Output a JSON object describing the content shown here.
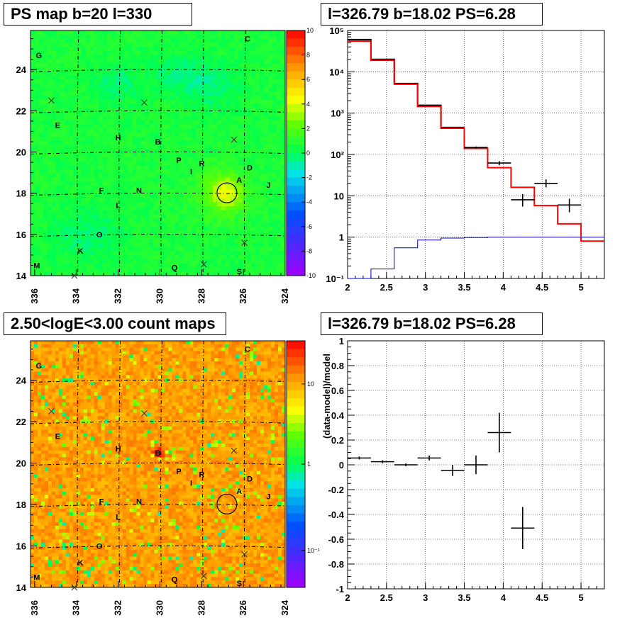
{
  "panels": {
    "ps_map": {
      "title": "PS map b=20 l=330"
    },
    "count_map": {
      "title": "2.50<logE<3.00 count maps"
    },
    "spectrum": {
      "title": "l=326.79 b=18.02 PS=6.28"
    },
    "residual": {
      "title": "l=326.79 b=18.02 PS=6.28"
    }
  },
  "chart_data": [
    {
      "type": "heatmap",
      "name": "ps_map",
      "title": "PS map b=20 l=330",
      "xlim": [
        336.2,
        324
      ],
      "ylim": [
        14,
        25.9
      ],
      "x_ticks": [
        "336",
        "334",
        "332",
        "330",
        "328",
        "326",
        "324"
      ],
      "y_ticks": [
        "14",
        "16",
        "18",
        "20",
        "22",
        "24"
      ],
      "colorbar": {
        "min": -10,
        "max": 10,
        "ticks": [
          "-10",
          "-8",
          "-6",
          "-4",
          "-2",
          "0",
          "2",
          "4",
          "6",
          "8",
          "10"
        ]
      },
      "grid": true
    },
    {
      "type": "heatmap",
      "name": "count_map",
      "title": "2.50<logE<3.00 count maps",
      "xlim": [
        336.2,
        324
      ],
      "ylim": [
        14,
        25.9
      ],
      "x_ticks": [
        "336",
        "334",
        "332",
        "330",
        "328",
        "326",
        "324"
      ],
      "y_ticks": [
        "14",
        "16",
        "18",
        "20",
        "22",
        "24"
      ],
      "colorbar": {
        "scale": "log",
        "ticks": [
          "10",
          "1",
          "10⁻¹"
        ]
      },
      "grid": true
    },
    {
      "type": "line",
      "name": "spectrum",
      "title": "l=326.79 b=18.02 PS=6.28",
      "xlim": [
        2,
        5.3
      ],
      "ylim": [
        0.1,
        100000
      ],
      "yscale": "log",
      "x_ticks": [
        "2",
        "2.5",
        "3",
        "3.5",
        "4",
        "4.5",
        "5"
      ],
      "y_ticks": [
        "10⁻¹",
        "1",
        "10",
        "10²",
        "10³",
        "10⁴",
        "10⁵"
      ],
      "grid": true,
      "series": [
        {
          "kind": "step",
          "color": "#000000",
          "edges": [
            2,
            2.3,
            2.6,
            2.9,
            3.2,
            3.5
          ],
          "values": [
            60000,
            20000,
            5200,
            1550,
            450
          ]
        },
        {
          "kind": "step",
          "color": "#ff0000",
          "edges": [
            2,
            2.3,
            2.6,
            2.9,
            3.2,
            3.5,
            3.8,
            4.1,
            4.4,
            4.7,
            5.0,
            5.3
          ],
          "values": [
            55000,
            19000,
            5000,
            1450,
            430,
            140,
            48,
            16,
            5.8,
            2.1,
            0.8
          ]
        },
        {
          "kind": "step",
          "color": "#0000cc",
          "edges": [
            2,
            2.3,
            2.6,
            2.9,
            3.2,
            3.5,
            3.8,
            4.1,
            4.4,
            4.7,
            5.0,
            5.3
          ],
          "values": [
            0.1,
            0.17,
            0.55,
            0.85,
            0.95,
            0.98,
            1,
            1,
            1,
            1,
            1
          ]
        },
        {
          "kind": "errorbar",
          "color": "#000000",
          "points": [
            {
              "x": 3.65,
              "xerr": 0.15,
              "y": 148,
              "ylo": 140,
              "yhi": 156
            },
            {
              "x": 3.95,
              "xerr": 0.15,
              "y": 62,
              "ylo": 55,
              "yhi": 69
            },
            {
              "x": 4.25,
              "xerr": 0.15,
              "y": 8,
              "ylo": 5.5,
              "yhi": 11
            },
            {
              "x": 4.55,
              "xerr": 0.15,
              "y": 20,
              "ylo": 16,
              "yhi": 25
            },
            {
              "x": 4.85,
              "xerr": 0.15,
              "y": 6,
              "ylo": 4,
              "yhi": 8.5
            }
          ]
        }
      ]
    },
    {
      "type": "scatter",
      "name": "residual",
      "title": "l=326.79 b=18.02 PS=6.28",
      "ylabel": "(data-model)/model",
      "xlim": [
        2,
        5.3
      ],
      "ylim": [
        -1,
        1
      ],
      "x_ticks": [
        "2",
        "2.5",
        "3",
        "3.5",
        "4",
        "4.5",
        "5"
      ],
      "y_ticks": [
        "-1",
        "-0.8",
        "-0.6",
        "-0.4",
        "-0.2",
        "0",
        "0.2",
        "0.4",
        "0.6",
        "0.8",
        "1"
      ],
      "grid": true,
      "points": [
        {
          "x": 2.15,
          "xerr": 0.15,
          "y": 0.055,
          "yerr": 0.012
        },
        {
          "x": 2.45,
          "xerr": 0.15,
          "y": 0.025,
          "yerr": 0.012
        },
        {
          "x": 2.75,
          "xerr": 0.15,
          "y": 0.0,
          "yerr": 0.012
        },
        {
          "x": 3.05,
          "xerr": 0.15,
          "y": 0.055,
          "yerr": 0.02
        },
        {
          "x": 3.35,
          "xerr": 0.15,
          "y": -0.045,
          "yerr": 0.045
        },
        {
          "x": 3.65,
          "xerr": 0.15,
          "y": 0.0,
          "yerr": 0.075
        },
        {
          "x": 3.95,
          "xerr": 0.15,
          "y": 0.26,
          "yerr": 0.16
        },
        {
          "x": 4.25,
          "xerr": 0.15,
          "y": -0.51,
          "yerr": 0.17
        }
      ]
    }
  ],
  "sky_overlays": {
    "source_labels": [
      {
        "text": "C",
        "l": 325.8,
        "b": 25.5
      },
      {
        "text": "G",
        "l": 335.8,
        "b": 24.7
      },
      {
        "text": "E",
        "l": 334.9,
        "b": 21.3
      },
      {
        "text": "H",
        "l": 332.0,
        "b": 20.7
      },
      {
        "text": "B",
        "l": 330.1,
        "b": 20.5
      },
      {
        "text": "P",
        "l": 329.1,
        "b": 19.6
      },
      {
        "text": "R",
        "l": 328.0,
        "b": 19.45
      },
      {
        "text": "I",
        "l": 328.5,
        "b": 19.05
      },
      {
        "text": "D",
        "l": 325.7,
        "b": 19.25
      },
      {
        "text": "A",
        "l": 326.2,
        "b": 18.65
      },
      {
        "text": "J",
        "l": 324.8,
        "b": 18.4
      },
      {
        "text": "F",
        "l": 332.8,
        "b": 18.15
      },
      {
        "text": "N",
        "l": 331.0,
        "b": 18.15
      },
      {
        "text": "L",
        "l": 332.0,
        "b": 17.4
      },
      {
        "text": "O",
        "l": 332.9,
        "b": 16.0
      },
      {
        "text": "K",
        "l": 333.8,
        "b": 15.2
      },
      {
        "text": "M",
        "l": 335.9,
        "b": 14.5
      },
      {
        "text": "Q",
        "l": 329.3,
        "b": 14.4
      },
      {
        "text": "S",
        "l": 326.2,
        "b": 14.2
      }
    ],
    "crosses": [
      {
        "l": 335.2,
        "b": 22.5
      },
      {
        "l": 330.75,
        "b": 22.4
      },
      {
        "l": 326.45,
        "b": 20.6
      },
      {
        "l": 325.95,
        "b": 15.6
      },
      {
        "l": 327.9,
        "b": 14.55
      },
      {
        "l": 334.1,
        "b": 14.0
      }
    ],
    "circle": {
      "l": 326.79,
      "b": 18.02
    }
  }
}
